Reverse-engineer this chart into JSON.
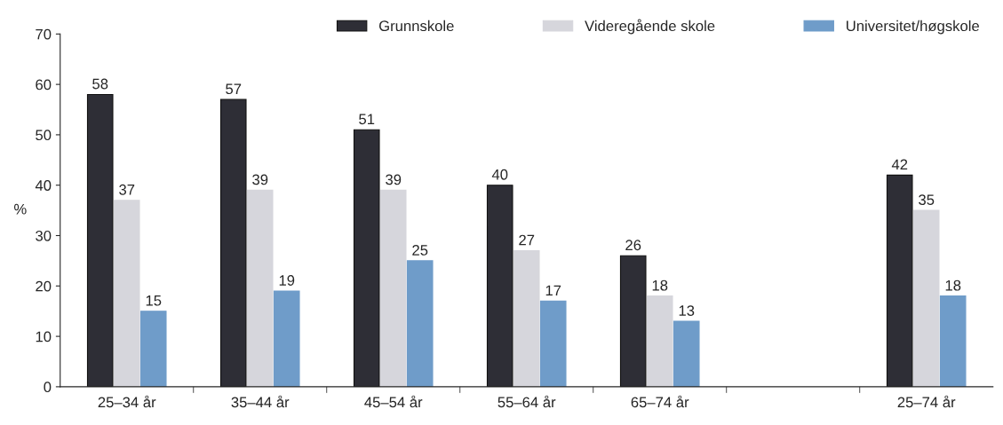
{
  "chart_data": {
    "type": "bar",
    "ylabel": "%",
    "categories": [
      "25–34 år",
      "35–44 år",
      "45–54 år",
      "55–64 år",
      "65–74 år",
      null,
      "25–74 år"
    ],
    "series": [
      {
        "name": "Grunnskole",
        "color": "#2e2e36",
        "values": [
          58,
          57,
          51,
          40,
          26,
          null,
          42
        ]
      },
      {
        "name": "Videregående skole",
        "color": "#d6d6dc",
        "values": [
          37,
          39,
          39,
          27,
          18,
          null,
          35
        ]
      },
      {
        "name": "Universitet/høgskole",
        "color": "#6f9cc9",
        "values": [
          15,
          19,
          25,
          17,
          13,
          null,
          18
        ]
      }
    ],
    "ylim": [
      0,
      70
    ],
    "yticks": [
      0,
      10,
      20,
      30,
      40,
      50,
      60,
      70
    ],
    "data_labels": true,
    "legend": "top right",
    "grid": false
  }
}
